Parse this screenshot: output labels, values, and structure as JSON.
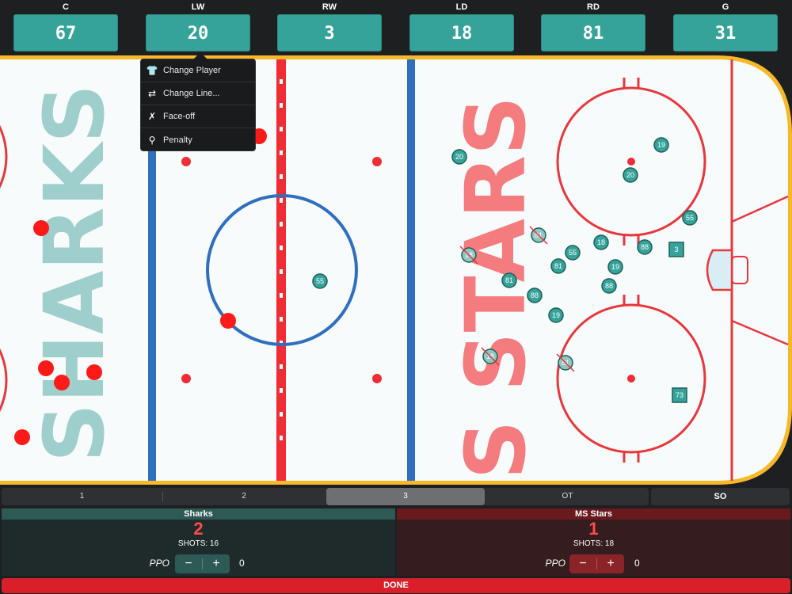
{
  "positions": [
    {
      "label": "C",
      "number": "67"
    },
    {
      "label": "LW",
      "number": "20"
    },
    {
      "label": "RW",
      "number": "3"
    },
    {
      "label": "LD",
      "number": "18"
    },
    {
      "label": "RD",
      "number": "81"
    },
    {
      "label": "G",
      "number": "31"
    }
  ],
  "menu": {
    "items": [
      {
        "label": "Change Player",
        "icon": "jersey-icon"
      },
      {
        "label": "Change Line...",
        "icon": "swap-arrows-icon"
      },
      {
        "label": "Face-off",
        "icon": "crossed-sticks-icon"
      },
      {
        "label": "Penalty",
        "icon": "whistle-icon"
      }
    ]
  },
  "rink": {
    "home_text": "SHARKS",
    "away_text": "MS STARS",
    "home_color": "#3aa39b",
    "away_color": "#ff4b4b",
    "markers": [
      {
        "n": "20",
        "type": "circle"
      },
      {
        "n": "19",
        "type": "circle"
      },
      {
        "n": "20",
        "type": "circle"
      },
      {
        "n": "55",
        "type": "circle"
      },
      {
        "n": "81",
        "type": "circle",
        "crossed": true
      },
      {
        "n": "18",
        "type": "circle",
        "crossed": true
      },
      {
        "n": "18",
        "type": "circle"
      },
      {
        "n": "55",
        "type": "circle"
      },
      {
        "n": "88",
        "type": "circle"
      },
      {
        "n": "3",
        "type": "square"
      },
      {
        "n": "81",
        "type": "circle"
      },
      {
        "n": "81",
        "type": "circle"
      },
      {
        "n": "19",
        "type": "circle"
      },
      {
        "n": "88",
        "type": "circle"
      },
      {
        "n": "88",
        "type": "circle"
      },
      {
        "n": "19",
        "type": "circle"
      },
      {
        "n": "55",
        "type": "circle"
      },
      {
        "n": "18",
        "type": "circle",
        "crossed": true
      },
      {
        "n": "81",
        "type": "circle",
        "crossed": true
      },
      {
        "n": "73",
        "type": "square"
      }
    ]
  },
  "periods": {
    "items": [
      "1",
      "2",
      "3",
      "OT"
    ],
    "active": "3",
    "shootout": "SO"
  },
  "home": {
    "name": "Sharks",
    "score": "2",
    "shots": "SHOTS: 16",
    "ppo_label": "PPO",
    "ppo_value": "0",
    "minus": "−",
    "plus": "+"
  },
  "away": {
    "name": "MS Stars",
    "score": "1",
    "shots": "SHOTS: 18",
    "ppo_label": "PPO",
    "ppo_value": "0",
    "minus": "−",
    "plus": "+"
  },
  "done_label": "DONE"
}
